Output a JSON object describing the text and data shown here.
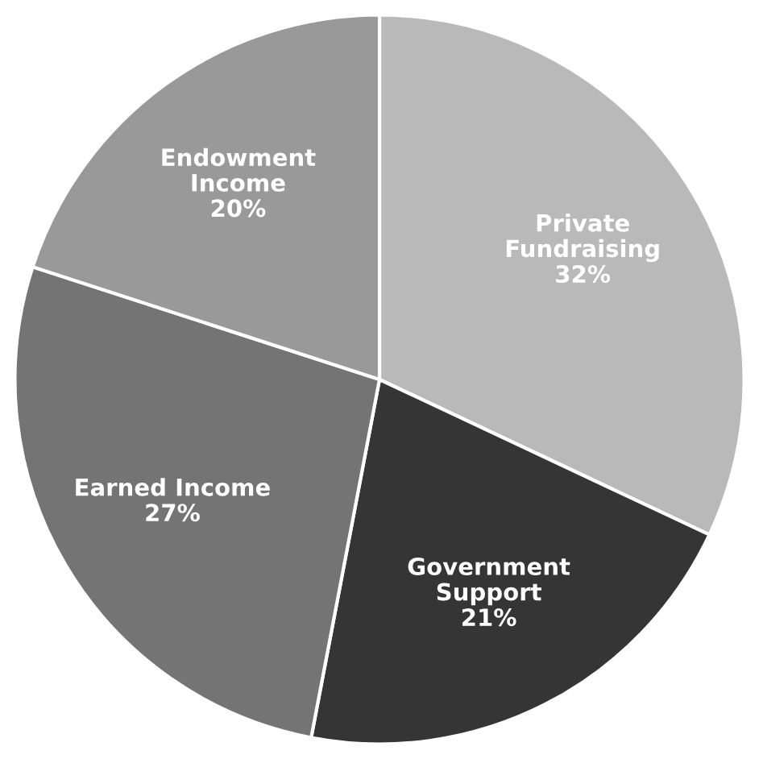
{
  "chart_data": {
    "type": "pie",
    "categories": [
      "Private\nFundraising",
      "Government\nSupport",
      "Earned Income",
      "Endowment\nIncome"
    ],
    "values": [
      32,
      21,
      27,
      20
    ],
    "value_labels": [
      "32%",
      "21%",
      "27%",
      "20%"
    ],
    "colors": [
      "#b9b9b9",
      "#353535",
      "#747474",
      "#999999"
    ],
    "legend": false
  }
}
